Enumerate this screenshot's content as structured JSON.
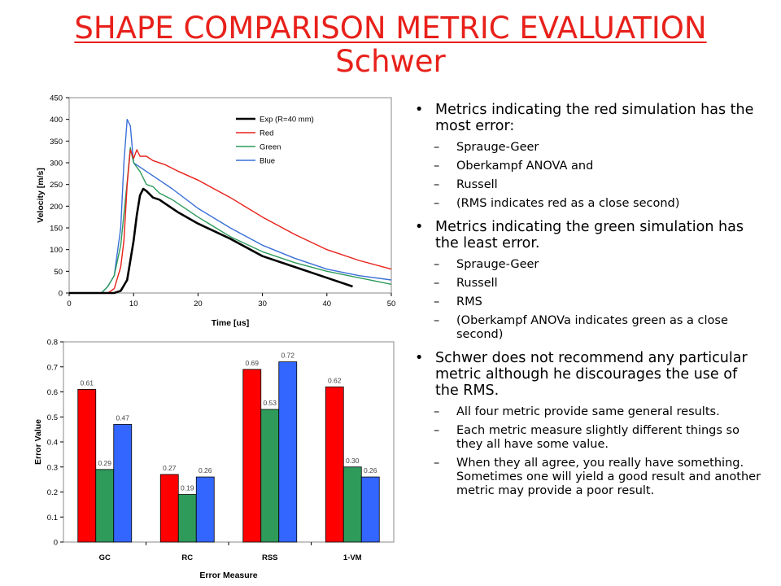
{
  "title": {
    "line1": "SHAPE COMPARISON METRIC EVALUATION",
    "line2": "Schwer"
  },
  "bullets": [
    {
      "text": "Metrics indicating the red simulation has the most error:",
      "subs": [
        "Sprauge-Geer",
        "Oberkampf ANOVA and",
        "Russell",
        "(RMS indicates red as a close second)"
      ]
    },
    {
      "text": "Metrics indicating the green simulation has the least error.",
      "subs": [
        "Sprauge-Geer",
        "Russell",
        "RMS",
        "(Oberkampf ANOVa indicates green as a close second)"
      ]
    },
    {
      "text": "Schwer does not recommend any particular metric although he discourages the use of the RMS.",
      "subs": [
        "All four metric provide same general results.",
        "Each metric measure slightly different things so they all have some value.",
        "When they all agree, you really have something.  Sometimes one will yield a good result and another metric may provide a poor result."
      ]
    }
  ],
  "chart_data": [
    {
      "type": "line",
      "xlabel": "Time [us]",
      "ylabel": "Velocity [m/s]",
      "xlim": [
        0,
        50
      ],
      "ylim": [
        0,
        450
      ],
      "xticks": [
        "0",
        "10",
        "20",
        "30",
        "40",
        "50"
      ],
      "yticks": [
        "0",
        "50",
        "100",
        "150",
        "200",
        "250",
        "300",
        "350",
        "400",
        "450"
      ],
      "grid": false,
      "legend": "top-right",
      "series": [
        {
          "name": "Exp (R=40 mm)",
          "color": "#000000",
          "x": [
            0,
            7,
            8,
            9,
            10,
            10.5,
            11,
            11.5,
            12,
            13,
            14,
            15,
            17,
            20,
            25,
            30,
            35,
            40,
            44
          ],
          "y": [
            0,
            0,
            5,
            30,
            120,
            180,
            225,
            240,
            235,
            220,
            215,
            205,
            185,
            160,
            125,
            85,
            60,
            35,
            15
          ]
        },
        {
          "name": "Red",
          "color": "#e8201a",
          "x": [
            0,
            6,
            7,
            8,
            8.5,
            9,
            9.5,
            10,
            10.5,
            11,
            12,
            13,
            15,
            17,
            20,
            25,
            30,
            35,
            40,
            45,
            50
          ],
          "y": [
            0,
            0,
            10,
            60,
            120,
            250,
            330,
            310,
            330,
            315,
            315,
            305,
            295,
            280,
            260,
            220,
            175,
            135,
            100,
            75,
            55
          ]
        },
        {
          "name": "Green",
          "color": "#2e9b5b",
          "x": [
            0,
            5,
            6,
            7,
            8,
            9,
            9.5,
            10,
            11,
            12,
            13,
            14,
            16,
            20,
            25,
            30,
            35,
            40,
            45,
            50
          ],
          "y": [
            0,
            0,
            15,
            40,
            110,
            255,
            335,
            300,
            280,
            250,
            245,
            230,
            215,
            175,
            130,
            95,
            70,
            50,
            35,
            20
          ]
        },
        {
          "name": "Blue",
          "color": "#3a6fd8",
          "x": [
            0,
            5,
            6,
            7,
            8,
            8.5,
            9,
            9.5,
            10,
            11,
            12,
            14,
            16,
            20,
            25,
            30,
            35,
            40,
            45,
            50
          ],
          "y": [
            0,
            0,
            15,
            40,
            150,
            300,
            400,
            385,
            300,
            290,
            280,
            260,
            240,
            195,
            150,
            110,
            80,
            55,
            40,
            30
          ]
        }
      ]
    },
    {
      "type": "bar",
      "xlabel": "Error Measure",
      "ylabel": "Error Value",
      "ylim": [
        0,
        0.8
      ],
      "yticks": [
        "0",
        "0.1",
        "0.2",
        "0.3",
        "0.4",
        "0.5",
        "0.6",
        "0.7",
        "0.8"
      ],
      "categories": [
        "GC",
        "RC",
        "RSS",
        "1-VM"
      ],
      "grid": false,
      "series": [
        {
          "color": "#ff0000",
          "values": [
            0.61,
            0.27,
            0.69,
            0.62
          ],
          "labels": [
            "0.61",
            "0.27",
            "0.69",
            "0.62"
          ]
        },
        {
          "color": "#2e9b5b",
          "values": [
            0.29,
            0.19,
            0.53,
            0.3
          ],
          "labels": [
            "0.29",
            "0.19",
            "0.53",
            "0.30"
          ]
        },
        {
          "color": "#3366ff",
          "values": [
            0.47,
            0.26,
            0.72,
            0.26
          ],
          "labels": [
            "0.47",
            "0.26",
            "0.72",
            "0.26"
          ]
        }
      ]
    }
  ]
}
